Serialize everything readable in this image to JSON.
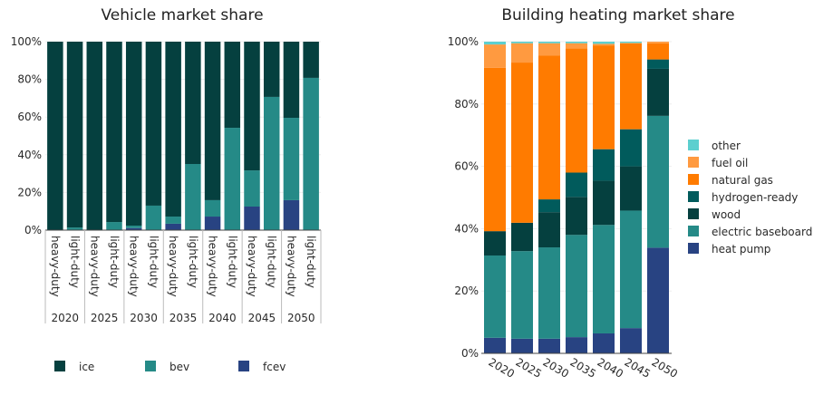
{
  "chart_data": [
    {
      "type": "bar",
      "stacked": true,
      "title": "Vehicle market share",
      "groups": [
        "2020",
        "2025",
        "2030",
        "2035",
        "2040",
        "2045",
        "2050"
      ],
      "subcategories": [
        "heavy-duty",
        "light-duty"
      ],
      "ylim": [
        0,
        100
      ],
      "yticks": [
        "0%",
        "20%",
        "40%",
        "60%",
        "80%",
        "100%"
      ],
      "grid": true,
      "legend_position": "bottom",
      "series": [
        {
          "name": "fcev",
          "color": "#284382",
          "values": [
            0,
            0,
            0,
            0,
            1.1,
            0,
            3.4,
            0,
            7.2,
            0,
            12.5,
            0,
            15.9,
            0
          ]
        },
        {
          "name": "bev",
          "color": "#258a87",
          "values": [
            0,
            1.4,
            0,
            4.3,
            1.3,
            13.0,
            3.8,
            35.1,
            8.7,
            54.3,
            19.2,
            70.7,
            43.7,
            80.8
          ]
        },
        {
          "name": "ice",
          "color": "#05403f",
          "values": [
            100,
            98.6,
            100,
            95.7,
            97.6,
            87.0,
            92.8,
            64.9,
            84.1,
            45.7,
            68.3,
            29.3,
            40.4,
            19.2
          ]
        }
      ],
      "legend_order": [
        "ice",
        "bev",
        "fcev"
      ]
    },
    {
      "type": "bar",
      "stacked": true,
      "title": "Building heating market share",
      "categories": [
        "2020",
        "2025",
        "2030",
        "2035",
        "2040",
        "2045",
        "2050"
      ],
      "ylim": [
        0,
        100
      ],
      "yticks": [
        "0%",
        "20%",
        "40%",
        "60%",
        "80%",
        "100%"
      ],
      "grid": true,
      "legend_position": "right",
      "series": [
        {
          "name": "heat pump",
          "color": "#284382",
          "values": [
            5.0,
            4.7,
            4.7,
            5.2,
            6.4,
            8.1,
            33.9
          ]
        },
        {
          "name": "electric baseboard",
          "color": "#258a87",
          "values": [
            26.4,
            28.1,
            29.3,
            32.8,
            34.8,
            37.7,
            42.3
          ]
        },
        {
          "name": "wood",
          "color": "#05403f",
          "values": [
            7.8,
            9.1,
            11.3,
            12.2,
            14.2,
            14.2,
            15.1
          ]
        },
        {
          "name": "hydrogen-ready",
          "color": "#015b5c",
          "values": [
            0,
            0,
            4.1,
            7.8,
            10.1,
            11.9,
            3.0
          ]
        },
        {
          "name": "natural gas",
          "color": "#ff7b00",
          "values": [
            52.4,
            51.4,
            46.2,
            39.8,
            33.3,
            27.6,
            5.2
          ]
        },
        {
          "name": "fuel oil",
          "color": "#ff9a40",
          "values": [
            7.5,
            6.2,
            3.9,
            1.7,
            0.5,
            0.1,
            0.5
          ]
        },
        {
          "name": "other",
          "color": "#5ccfcf",
          "values": [
            0.9,
            0.5,
            0.5,
            0.5,
            0.7,
            0.4,
            0
          ]
        }
      ]
    }
  ]
}
